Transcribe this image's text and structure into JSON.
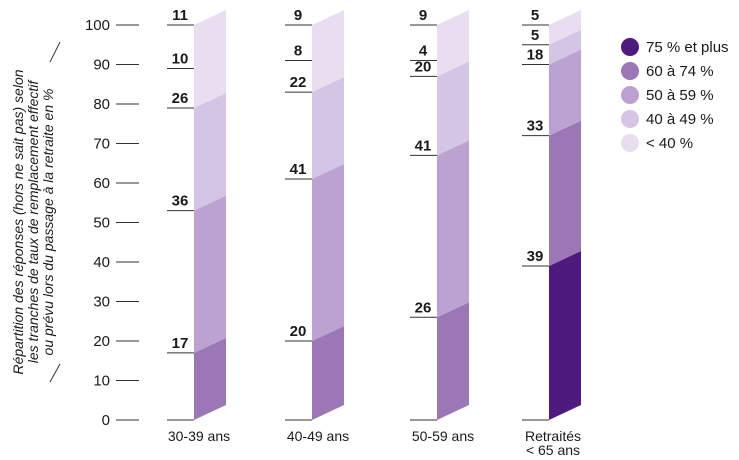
{
  "chart_data": {
    "type": "bar",
    "stacked": true,
    "ylabel_lines": [
      "Répartition des réponses (hors ne sait pas) selon",
      "les tranches de taux de remplacement effectif",
      "ou prévu lors du passage à la retraite en %"
    ],
    "xlabel": "",
    "ylim": [
      0,
      100
    ],
    "yticks": [
      0,
      10,
      20,
      30,
      40,
      50,
      60,
      70,
      80,
      90,
      100
    ],
    "categories": [
      [
        "30-39 ans"
      ],
      [
        "40-49 ans"
      ],
      [
        "50-59 ans"
      ],
      [
        "Retraités",
        "< 65 ans"
      ]
    ],
    "series": [
      {
        "name": "75 % et plus",
        "color": "#4f1a7e",
        "values": [
          0,
          0,
          0,
          39
        ]
      },
      {
        "name": "60 à 74 %",
        "color": "#9b77b6",
        "values": [
          17,
          20,
          26,
          33
        ]
      },
      {
        "name": "50 à 59 %",
        "color": "#bba2d0",
        "values": [
          36,
          41,
          41,
          18
        ]
      },
      {
        "name": "40 à 49 %",
        "color": "#d5c5e4",
        "values": [
          26,
          22,
          20,
          5
        ]
      },
      {
        "name": "< 40 %",
        "color": "#e8def0",
        "values": [
          10,
          8,
          4,
          5
        ]
      }
    ],
    "extra_top": [
      11,
      9,
      9,
      0
    ],
    "legend_position": "right"
  }
}
